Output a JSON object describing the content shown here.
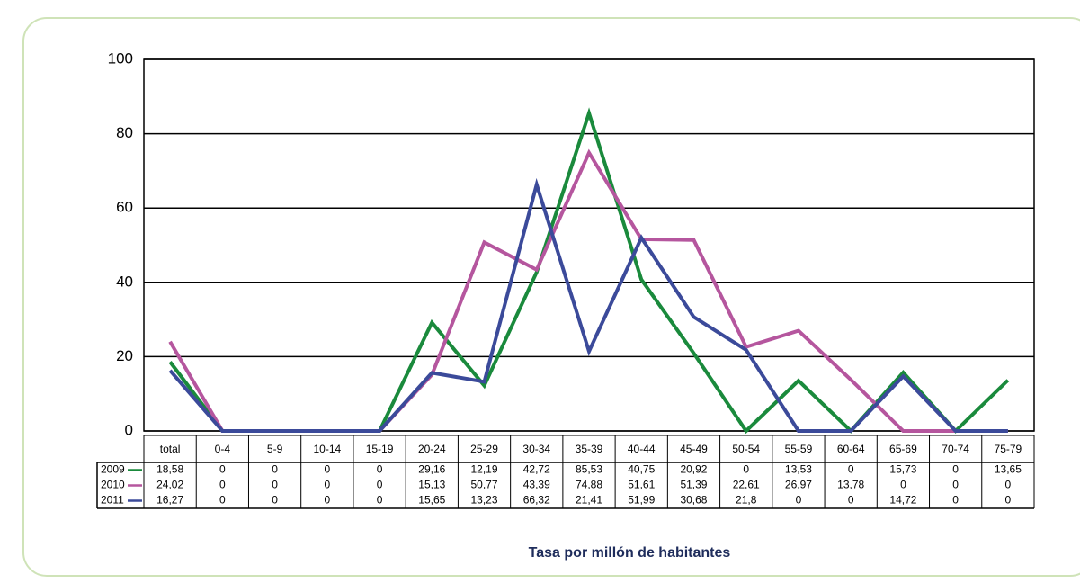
{
  "chart_data": {
    "type": "line",
    "x_label": "Tasa por millón de habitantes",
    "categories": [
      "total",
      "0-4",
      "5-9",
      "10-14",
      "15-19",
      "20-24",
      "25-29",
      "30-34",
      "35-39",
      "40-44",
      "45-49",
      "50-54",
      "55-59",
      "60-64",
      "65-69",
      "70-74",
      "75-79"
    ],
    "series": [
      {
        "name": "2009",
        "color": "#1a8a3c",
        "values": [
          18.58,
          0,
          0,
          0,
          0,
          29.16,
          12.19,
          42.72,
          85.53,
          40.75,
          20.92,
          0,
          13.53,
          0,
          15.73,
          0,
          13.65
        ],
        "value_labels": [
          "18,58",
          "0",
          "0",
          "0",
          "0",
          "29,16",
          "12,19",
          "42,72",
          "85,53",
          "40,75",
          "20,92",
          "0",
          "13,53",
          "0",
          "15,73",
          "0",
          "13,65"
        ]
      },
      {
        "name": "2010",
        "color": "#b5569e",
        "values": [
          24.02,
          0,
          0,
          0,
          0,
          15.13,
          50.77,
          43.39,
          74.88,
          51.61,
          51.39,
          22.61,
          26.97,
          13.78,
          0,
          0,
          0
        ],
        "value_labels": [
          "24,02",
          "0",
          "0",
          "0",
          "0",
          "15,13",
          "50,77",
          "43,39",
          "74,88",
          "51,61",
          "51,39",
          "22,61",
          "26,97",
          "13,78",
          "0",
          "0",
          "0"
        ]
      },
      {
        "name": "2011",
        "color": "#3b4a9a",
        "values": [
          16.27,
          0,
          0,
          0,
          0,
          15.65,
          13.23,
          66.32,
          21.41,
          51.99,
          30.68,
          21.8,
          0,
          0,
          14.72,
          0,
          0
        ],
        "value_labels": [
          "16,27",
          "0",
          "0",
          "0",
          "0",
          "15,65",
          "13,23",
          "66,32",
          "21,41",
          "51,99",
          "30,68",
          "21,8",
          "0",
          "0",
          "14,72",
          "0",
          "0"
        ]
      }
    ],
    "ylim": [
      0,
      100
    ],
    "yticks": [
      0,
      20,
      40,
      60,
      80,
      100
    ],
    "grid": true
  }
}
